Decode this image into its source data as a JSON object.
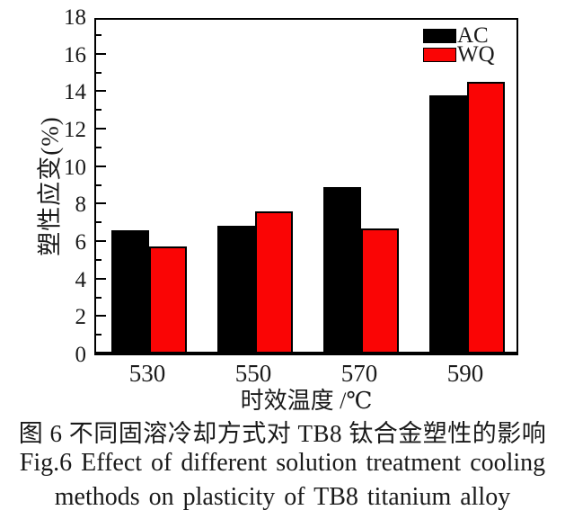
{
  "figure": {
    "caption_cn": "图 6  不同固溶冷却方式对 TB8 钛合金塑性的影响",
    "caption_en_line1": "Fig.6  Effect of different solution treatment cooling",
    "caption_en_line2": "methods on plasticity of TB8 titanium alloy"
  },
  "chart_data": {
    "type": "bar",
    "title": "",
    "categories": [
      "530",
      "550",
      "570",
      "590"
    ],
    "series": [
      {
        "name": "AC",
        "color": "#000000",
        "values": [
          6.5,
          6.7,
          8.8,
          13.7
        ]
      },
      {
        "name": "WQ",
        "color": "#fa0505",
        "values": [
          5.6,
          7.5,
          6.6,
          14.4
        ]
      }
    ],
    "xlabel": "时效温度 /℃",
    "ylabel": "塑性应变(%)",
    "ylim": [
      0,
      18
    ],
    "y_major_step": 2,
    "y_minor_step": 1,
    "grid": false,
    "legend_position": "top-right-inside",
    "bar_outline_color": "#000000"
  }
}
